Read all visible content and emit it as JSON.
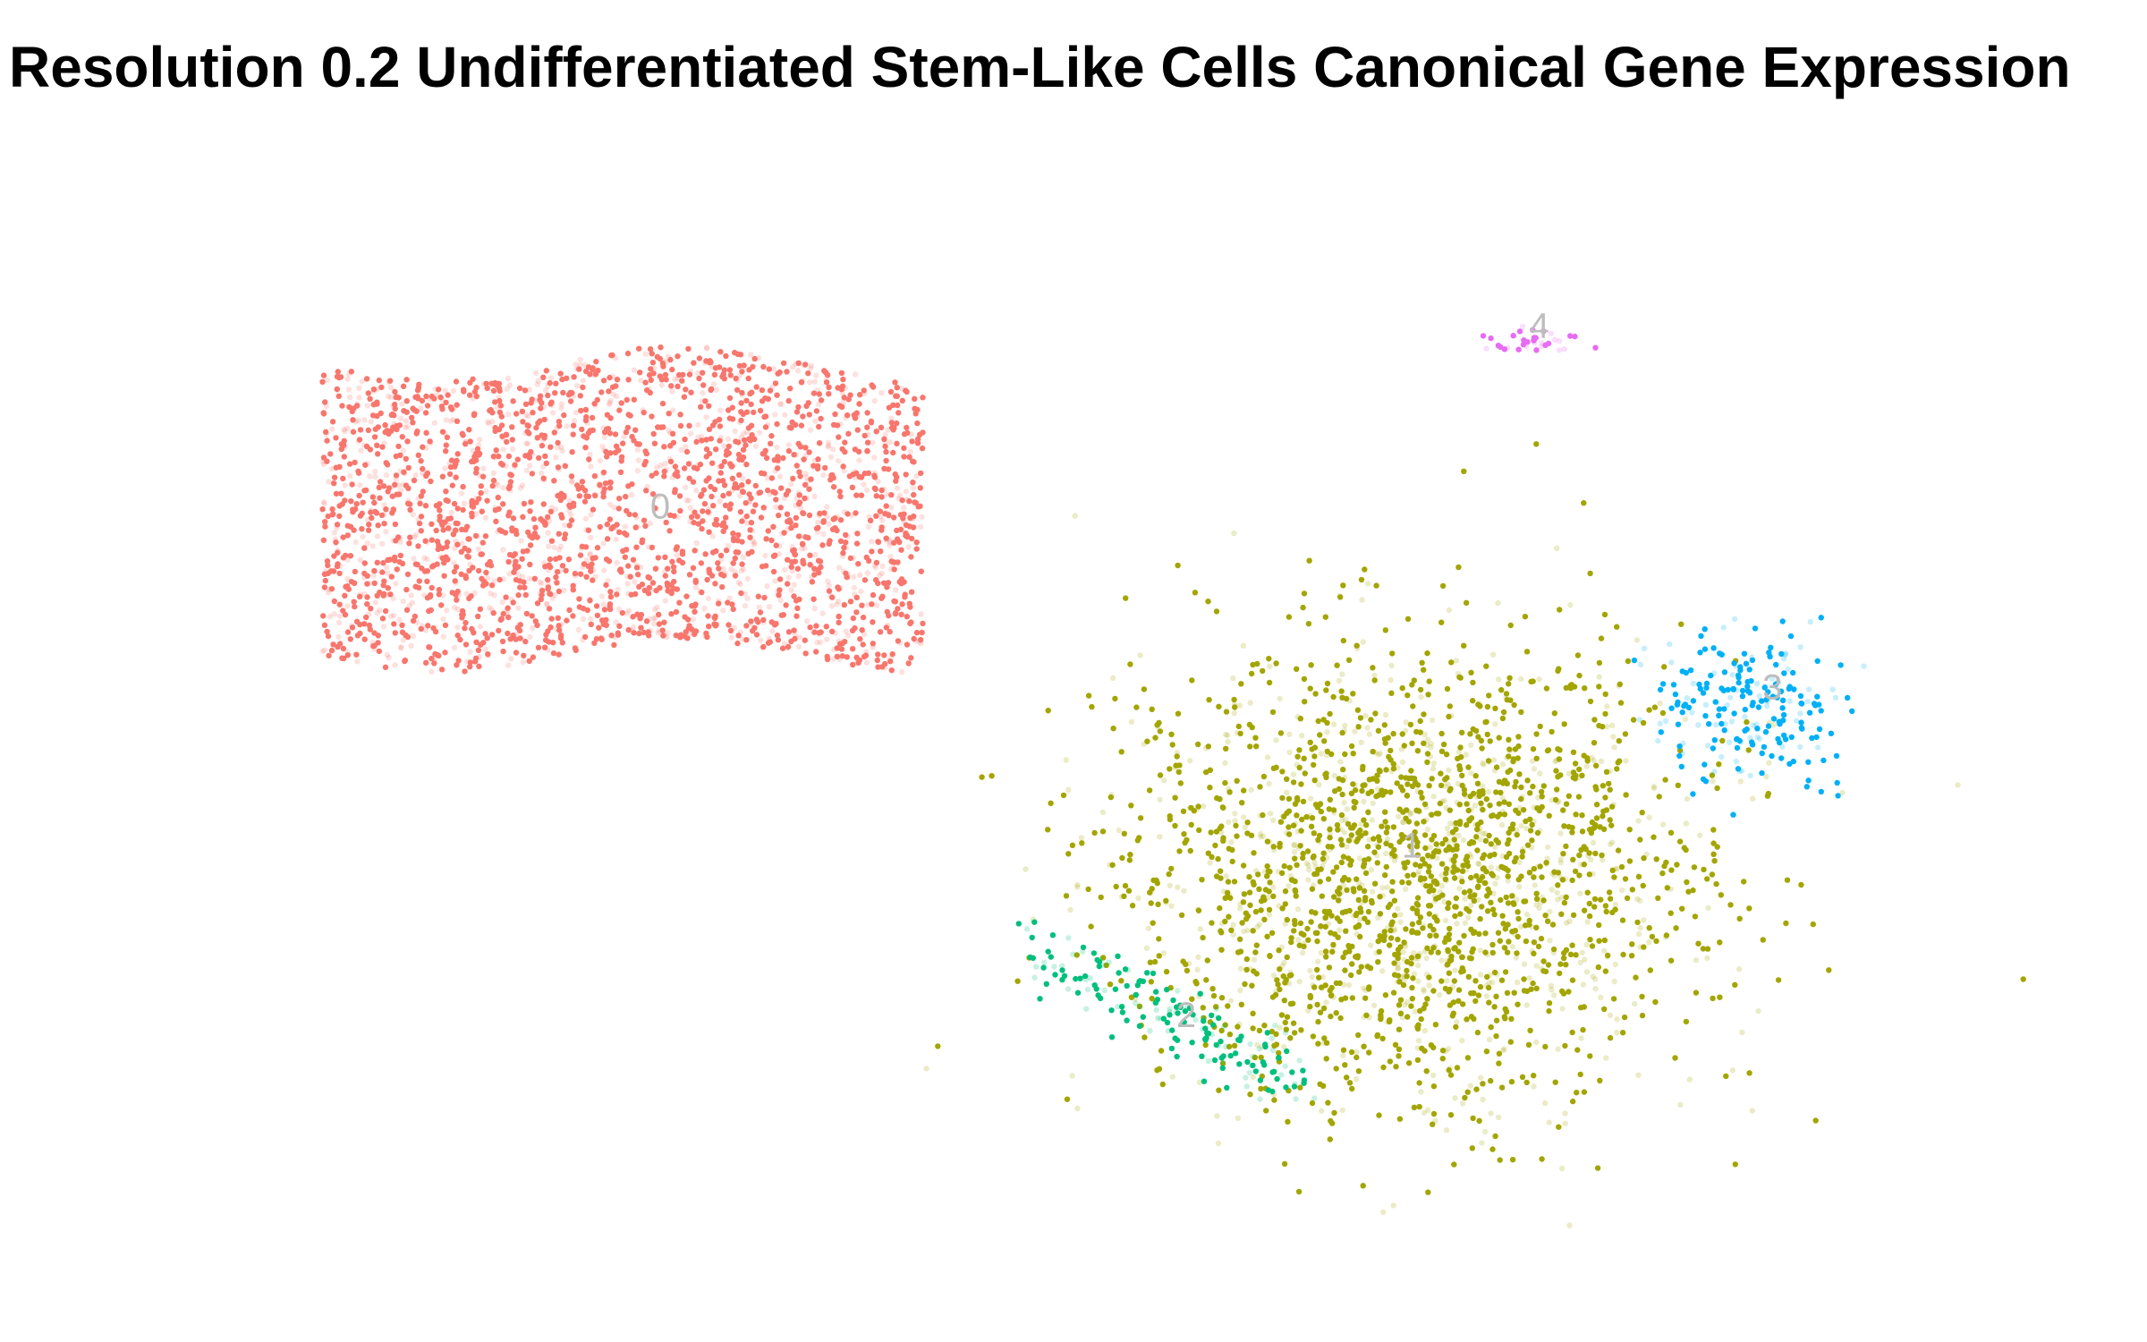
{
  "chart_data": {
    "type": "scatter",
    "title": "Resolution 0.2 Undifferentiated Stem-Like Cells Canonical Gene Expression",
    "xlabel": "",
    "ylabel": "",
    "axes_visible": false,
    "grid": false,
    "legend": "none",
    "xlim": [
      -12,
      13
    ],
    "ylim": [
      -8,
      11
    ],
    "clusters": [
      {
        "label": "0",
        "color": "#F8766D",
        "center": [
          -5.5,
          5.0
        ],
        "spread": [
          4.0,
          2.6
        ],
        "n": 2600,
        "shape": "box",
        "label_pos": [
          -5.0,
          5.0
        ]
      },
      {
        "label": "1",
        "color": "#A3A500",
        "center": [
          5.0,
          -1.5
        ],
        "spread": [
          3.8,
          4.0
        ],
        "n": 2300,
        "shape": "blob",
        "label_pos": [
          5.0,
          -1.0
        ]
      },
      {
        "label": "2",
        "color": "#00BF7D",
        "center": [
          1.8,
          -4.0
        ],
        "spread": [
          1.8,
          1.2
        ],
        "n": 180,
        "shape": "streak",
        "label_pos": [
          2.0,
          -4.0
        ]
      },
      {
        "label": "3",
        "color": "#00B0F6",
        "center": [
          9.5,
          1.5
        ],
        "spread": [
          1.3,
          1.3
        ],
        "n": 230,
        "shape": "blob",
        "label_pos": [
          9.8,
          1.8
        ]
      },
      {
        "label": "4",
        "color": "#E76BF3",
        "center": [
          6.7,
          8.0
        ],
        "spread": [
          0.55,
          0.25
        ],
        "n": 35,
        "shape": "blob",
        "label_pos": [
          6.7,
          8.2
        ]
      }
    ]
  }
}
